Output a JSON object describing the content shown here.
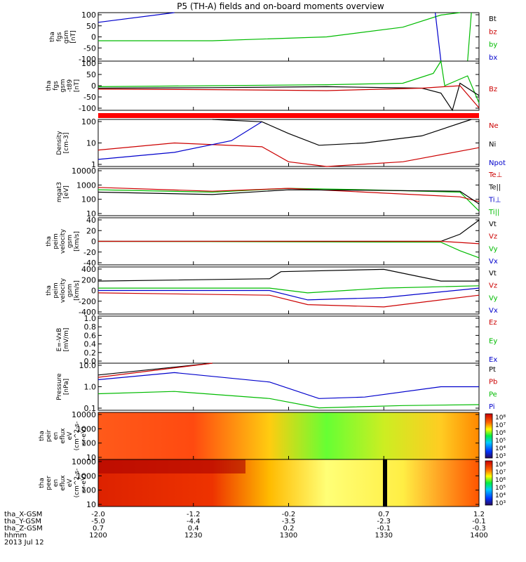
{
  "title": "P5 (TH-A) fields and on-board moments overview",
  "panels": [
    {
      "id": "fgs",
      "ylabel": [
        "tha",
        "fgs",
        "gsm",
        "[nT]"
      ],
      "yticks": [
        "100",
        "50",
        "0",
        "-50",
        "-100"
      ],
      "legend": [
        {
          "text": "Bt",
          "color": "#000000"
        },
        {
          "text": "bz",
          "color": "#cc0000"
        },
        {
          "text": "by",
          "color": "#00bb00"
        },
        {
          "text": "bx",
          "color": "#0000cc"
        }
      ]
    },
    {
      "id": "fgs_t89",
      "ylabel": [
        "tha",
        "fgs",
        "gsm",
        "-t89",
        "[nT]"
      ],
      "yticks": [
        "100",
        "50",
        "0",
        "-50",
        "-100"
      ],
      "legend": [
        {
          "text": "Bz",
          "color": "#cc0000"
        }
      ]
    },
    {
      "id": "density",
      "ylabel": [
        "Density",
        "[cm-3]"
      ],
      "yticks": [
        "100",
        "10",
        "1"
      ],
      "legend": [
        {
          "text": "Ne",
          "color": "#cc0000"
        },
        {
          "text": "Ni",
          "color": "#000000"
        },
        {
          "text": "Npot",
          "color": "#0000cc"
        }
      ]
    },
    {
      "id": "temperature",
      "ylabel": [
        "mgat3",
        "[eV]"
      ],
      "yticks": [
        "10000",
        "1000",
        "100",
        "10"
      ],
      "legend": [
        {
          "text": "Te⊥",
          "color": "#cc0000"
        },
        {
          "text": "Te||",
          "color": "#000000"
        },
        {
          "text": "Ti⊥",
          "color": "#0000cc"
        },
        {
          "text": "Ti||",
          "color": "#00bb00"
        }
      ]
    },
    {
      "id": "velocity_gsm",
      "ylabel": [
        "tha",
        "peim",
        "velocity",
        "gsm",
        "[km/s]"
      ],
      "yticks": [
        "40",
        "20",
        "0",
        "-20",
        "-40"
      ],
      "legend": [
        {
          "text": "Vt",
          "color": "#000000"
        },
        {
          "text": "Vz",
          "color": "#cc0000"
        },
        {
          "text": "Vy",
          "color": "#00bb00"
        },
        {
          "text": "Vx",
          "color": "#0000cc"
        }
      ]
    },
    {
      "id": "velocity_gsm2",
      "ylabel": [
        "tha",
        "peim",
        "velocity",
        "gsm",
        "[km/s]"
      ],
      "yticks": [
        "400",
        "200",
        "0",
        "-200",
        "-400"
      ],
      "legend": [
        {
          "text": "Vt",
          "color": "#000000"
        },
        {
          "text": "Vz",
          "color": "#cc0000"
        },
        {
          "text": "Vy",
          "color": "#00bb00"
        },
        {
          "text": "Vx",
          "color": "#0000cc"
        }
      ]
    },
    {
      "id": "efield",
      "ylabel": [
        "E=-VxB",
        "[mV/m]"
      ],
      "yticks": [
        "1.0",
        "0.8",
        "0.6",
        "0.4",
        "0.2",
        "0.0"
      ],
      "legend": [
        {
          "text": "Ez",
          "color": "#cc0000"
        },
        {
          "text": "Ey",
          "color": "#00bb00"
        },
        {
          "text": "Ex",
          "color": "#0000cc"
        }
      ]
    },
    {
      "id": "pressure",
      "ylabel": [
        "Pressure",
        "[nPa]"
      ],
      "yticks": [
        "10.0",
        "1.0",
        "0.1"
      ],
      "legend": [
        {
          "text": "Pt",
          "color": "#000000"
        },
        {
          "text": "Pb",
          "color": "#cc0000"
        },
        {
          "text": "Pe",
          "color": "#00bb00"
        },
        {
          "text": "Pi",
          "color": "#0000cc"
        }
      ]
    },
    {
      "id": "peir",
      "ylabel": [
        "tha",
        "peir",
        "en",
        "eflux",
        "eV",
        "(cm^2-s-",
        "sr-eV)"
      ],
      "yticks": [
        "10000",
        "1000",
        "100",
        "10"
      ],
      "colorbar": [
        "10⁸",
        "10⁷",
        "10⁶",
        "10⁵",
        "10⁴",
        "10³"
      ]
    },
    {
      "id": "peer",
      "ylabel": [
        "tha",
        "peer",
        "en",
        "eflux",
        "eV",
        "(cm^2-s-",
        "sr-eV)"
      ],
      "yticks": [
        "10000",
        "1000",
        "100",
        "10"
      ],
      "colorbar": [
        "10⁸",
        "10⁷",
        "10⁶",
        "10⁵",
        "10⁴",
        "10³"
      ]
    }
  ],
  "chart_data": {
    "type": "line",
    "title": "P5 (TH-A) fields and on-board moments overview",
    "time_ticks": [
      "1200",
      "1230",
      "1300",
      "1330",
      "1400"
    ],
    "date": "2013 Jul 12",
    "orbit_rows": [
      {
        "label": "tha_X-GSM",
        "values": [
          "-2.0",
          "-1.2",
          "-0.2",
          "0.7",
          "1.2"
        ]
      },
      {
        "label": "tha_Y-GSM",
        "values": [
          "-5.0",
          "-4.4",
          "-3.5",
          "-2.3",
          "-0.1"
        ]
      },
      {
        "label": "tha_Z-GSM",
        "values": [
          "0.7",
          "0.4",
          "0.2",
          "-0.1",
          "-0.3"
        ]
      },
      {
        "label": "hhmm",
        "values": [
          "1200",
          "1230",
          "1300",
          "1330",
          "1400"
        ]
      }
    ],
    "density": {
      "x": [
        0,
        0.1,
        0.2,
        0.3,
        0.4,
        0.5,
        0.6,
        0.7,
        0.8,
        0.9,
        1.0
      ],
      "Ne": [
        5,
        7,
        9,
        8,
        2,
        1,
        1,
        1.5,
        2.5,
        4,
        7
      ],
      "Ni": [
        100,
        100,
        100,
        100,
        60,
        8,
        10,
        15,
        40,
        100,
        200
      ],
      "Npot": [
        1.5,
        3,
        6,
        15,
        80,
        100,
        100,
        100,
        100,
        100,
        100
      ]
    },
    "pressure": {
      "x": [
        0,
        0.1,
        0.2,
        0.3,
        0.4,
        0.5,
        0.6,
        0.7,
        0.8,
        0.9,
        1.0
      ],
      "Pt": [
        15,
        20,
        25,
        30,
        30,
        30,
        30,
        30,
        30,
        30,
        30
      ],
      "Pi": [
        8,
        10,
        10,
        7,
        4,
        1,
        0.25,
        0.3,
        0.6,
        1.5,
        2.5
      ],
      "Pe": [
        0.4,
        0.5,
        0.4,
        0.35,
        0.25,
        0.1,
        0.07,
        0.08,
        0.1,
        0.12,
        0.15
      ]
    }
  }
}
